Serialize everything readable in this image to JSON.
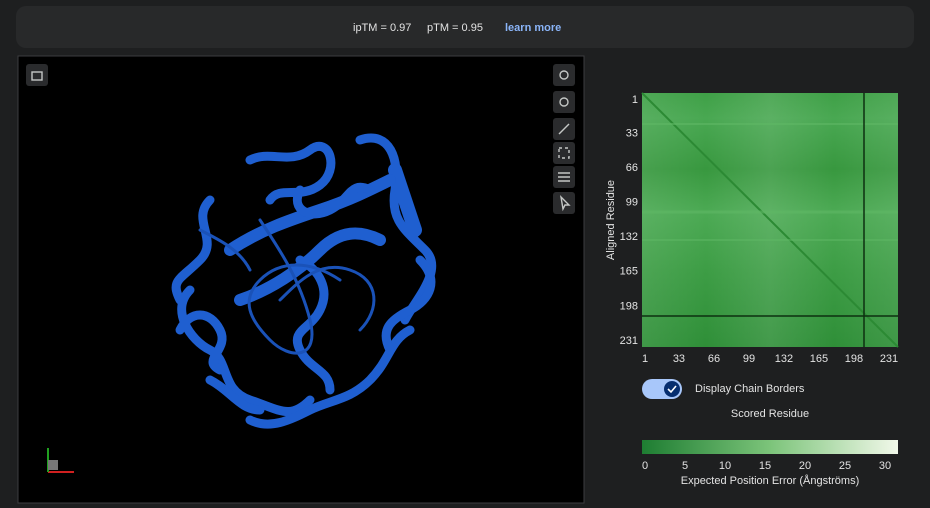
{
  "header": {
    "iptm": "ipTM = 0.97",
    "ptm": "pTM = 0.95",
    "link": "learn more"
  },
  "pae": {
    "y_label": "Aligned Residue",
    "ticks": [
      1,
      33,
      66,
      99,
      132,
      165,
      198,
      231
    ],
    "toggle_label": "Display Chain Borders",
    "x_label": "Scored Residue",
    "colorbar_ticks": [
      0,
      5,
      10,
      15,
      20,
      25,
      30
    ],
    "colorbar_label": "Expected Position Error (Ångströms)"
  }
}
